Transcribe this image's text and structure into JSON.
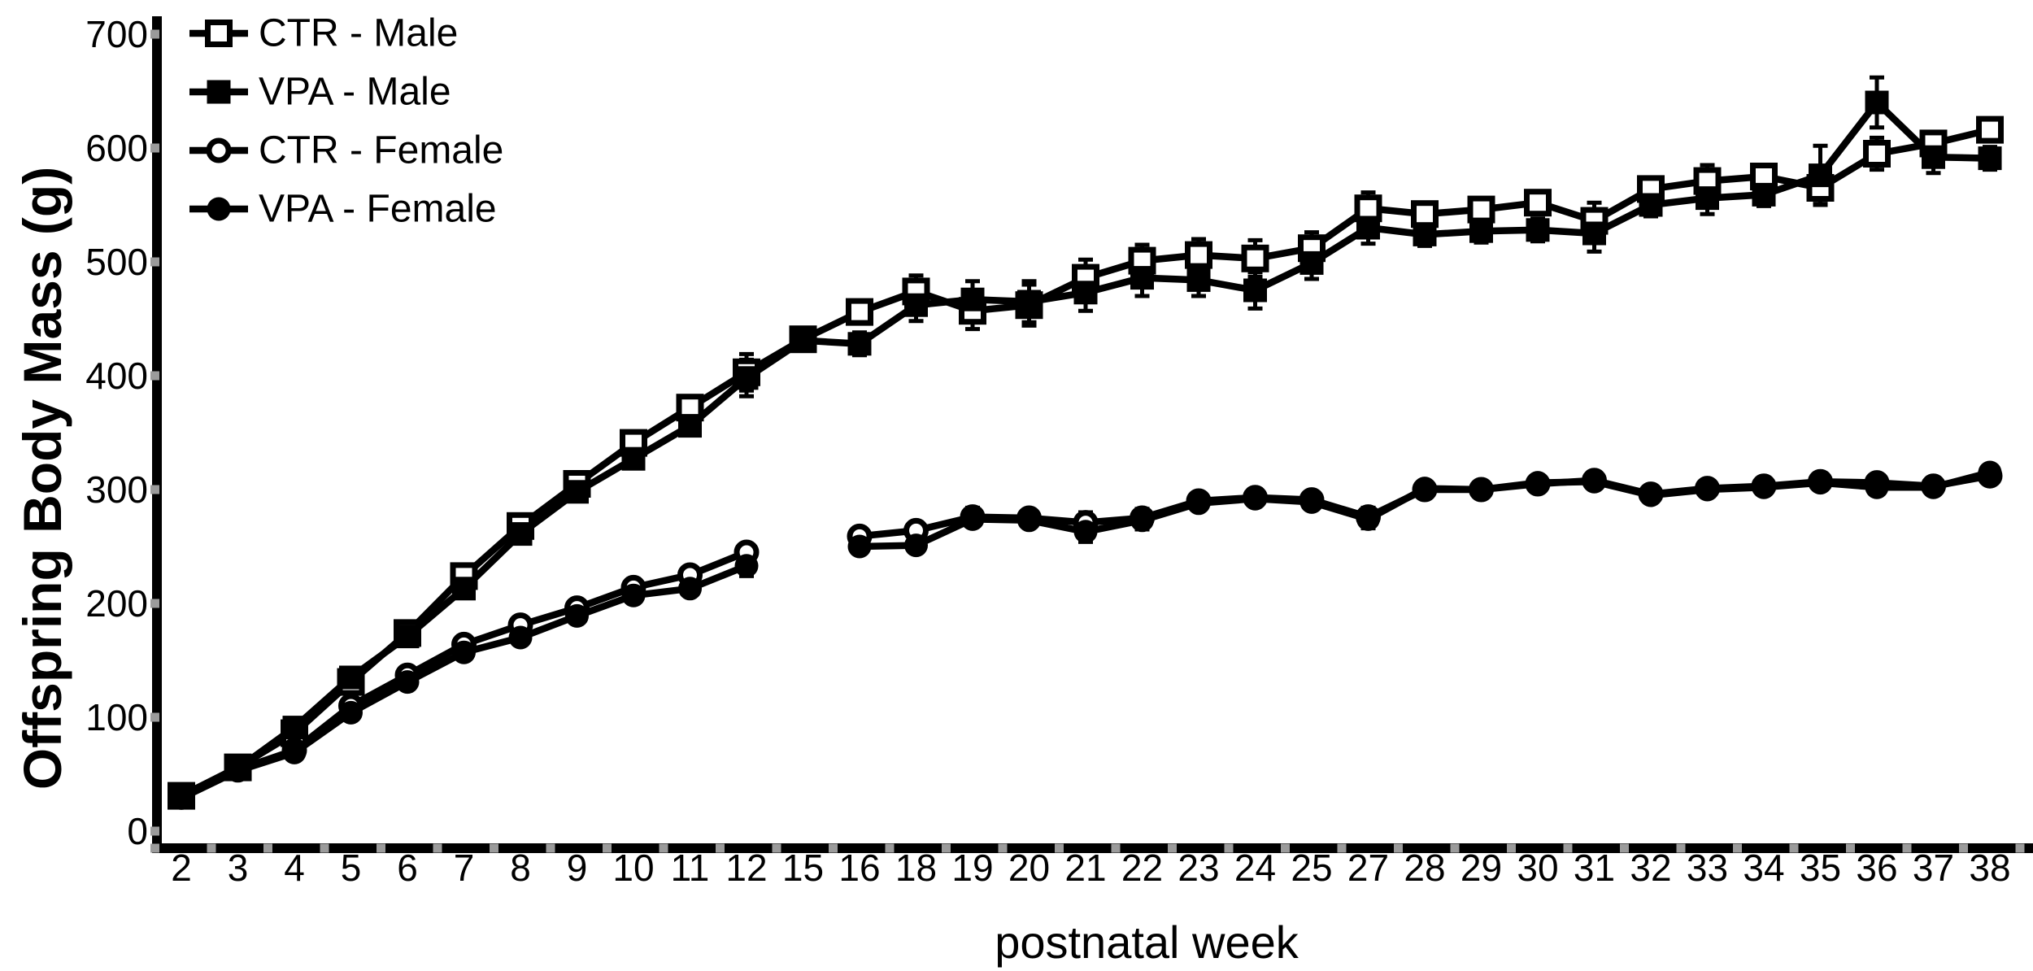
{
  "chart_data": {
    "type": "line",
    "title": "",
    "xlabel": "postnatal week",
    "ylabel": "Offspring Body Mass (g)",
    "x_categories": [
      "2",
      "3",
      "4",
      "5",
      "6",
      "7",
      "8",
      "9",
      "10",
      "11",
      "12",
      "15",
      "16",
      "18",
      "19",
      "20",
      "21",
      "22",
      "23",
      "24",
      "25",
      "27",
      "28",
      "29",
      "30",
      "31",
      "32",
      "33",
      "34",
      "35",
      "36",
      "37",
      "38"
    ],
    "ylim": [
      0,
      700
    ],
    "yticks": [
      0,
      100,
      200,
      300,
      400,
      500,
      600,
      700
    ],
    "grid": false,
    "legend_position": "top-left",
    "colors": {
      "foreground": "#000000",
      "tick_marks": "#9b9b9b",
      "background": "#ffffff"
    },
    "series": [
      {
        "name": "CTR - Male",
        "marker": "open-square",
        "values": [
          31,
          56,
          86,
          131,
          174,
          224,
          268,
          305,
          341,
          372,
          403,
          432,
          456,
          474,
          457,
          462,
          486,
          501,
          506,
          503,
          512,
          547,
          542,
          546,
          552,
          536,
          564,
          571,
          575,
          565,
          595,
          604,
          616
        ],
        "errors": [
          0,
          0,
          0,
          0,
          0,
          0,
          0,
          0,
          0,
          0,
          16,
          0,
          10,
          14,
          16,
          18,
          16,
          14,
          14,
          16,
          14,
          14,
          10,
          10,
          10,
          16,
          10,
          14,
          10,
          14,
          14,
          10,
          10
        ]
      },
      {
        "name": "VPA - Male",
        "marker": "filled-square",
        "values": [
          30,
          55,
          91,
          135,
          171,
          213,
          261,
          298,
          327,
          356,
          398,
          431,
          428,
          462,
          467,
          465,
          473,
          486,
          484,
          475,
          499,
          530,
          524,
          527,
          528,
          525,
          550,
          556,
          559,
          576,
          640,
          592,
          591
        ],
        "errors": [
          0,
          0,
          0,
          0,
          0,
          0,
          0,
          0,
          0,
          0,
          16,
          0,
          10,
          14,
          16,
          18,
          16,
          16,
          14,
          16,
          14,
          14,
          10,
          10,
          10,
          16,
          10,
          14,
          10,
          26,
          22,
          14,
          10
        ]
      },
      {
        "name": "CTR - Female",
        "marker": "open-circle",
        "values": [
          30,
          54,
          71,
          110,
          137,
          164,
          181,
          196,
          214,
          225,
          245,
          null,
          259,
          264,
          276,
          275,
          271,
          275,
          290,
          293,
          291,
          276,
          300,
          300,
          305,
          308,
          296,
          301,
          303,
          307,
          306,
          303,
          312
        ],
        "errors": [
          0,
          0,
          0,
          0,
          0,
          0,
          0,
          0,
          0,
          0,
          0,
          0,
          0,
          0,
          8,
          0,
          9,
          8,
          0,
          0,
          0,
          8,
          0,
          0,
          0,
          0,
          0,
          0,
          0,
          0,
          0,
          0,
          0
        ]
      },
      {
        "name": "VPA - Female",
        "marker": "filled-circle",
        "values": [
          29,
          53,
          69,
          104,
          131,
          157,
          170,
          189,
          207,
          213,
          233,
          null,
          250,
          251,
          274,
          273,
          263,
          273,
          288,
          292,
          289,
          274,
          301,
          300,
          306,
          307,
          295,
          300,
          302,
          306,
          302,
          302,
          315
        ],
        "errors": [
          0,
          0,
          0,
          0,
          0,
          0,
          0,
          0,
          0,
          0,
          9,
          0,
          0,
          0,
          0,
          0,
          9,
          8,
          0,
          0,
          0,
          8,
          0,
          0,
          0,
          0,
          0,
          0,
          0,
          0,
          0,
          0,
          0
        ]
      }
    ]
  }
}
